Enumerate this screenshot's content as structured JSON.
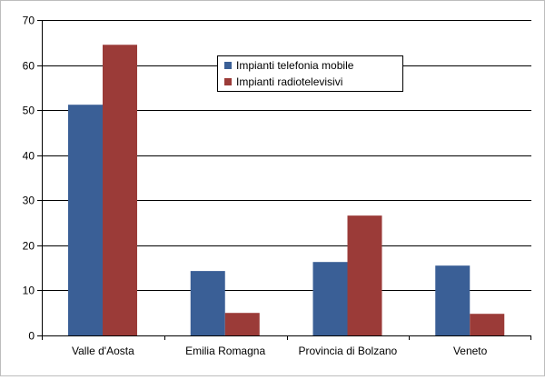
{
  "chart_data": {
    "type": "bar",
    "categories": [
      "Valle d'Aosta",
      "Emilia Romagna",
      "Provincia di Bolzano",
      "Veneto"
    ],
    "series": [
      {
        "name": "Impianti telefonia mobile",
        "values": [
          51.2,
          14.3,
          16.3,
          15.5
        ],
        "color": "#3A5F96"
      },
      {
        "name": "Impianti radiotelevisivi",
        "values": [
          64.5,
          5.0,
          26.6,
          4.8
        ],
        "color": "#9B3B38"
      }
    ],
    "ylim": [
      0,
      70
    ],
    "yticks": [
      0,
      10,
      20,
      30,
      40,
      50,
      60,
      70
    ],
    "grid": true,
    "legend_position": "top-center",
    "title": "",
    "xlabel": "",
    "ylabel": ""
  }
}
